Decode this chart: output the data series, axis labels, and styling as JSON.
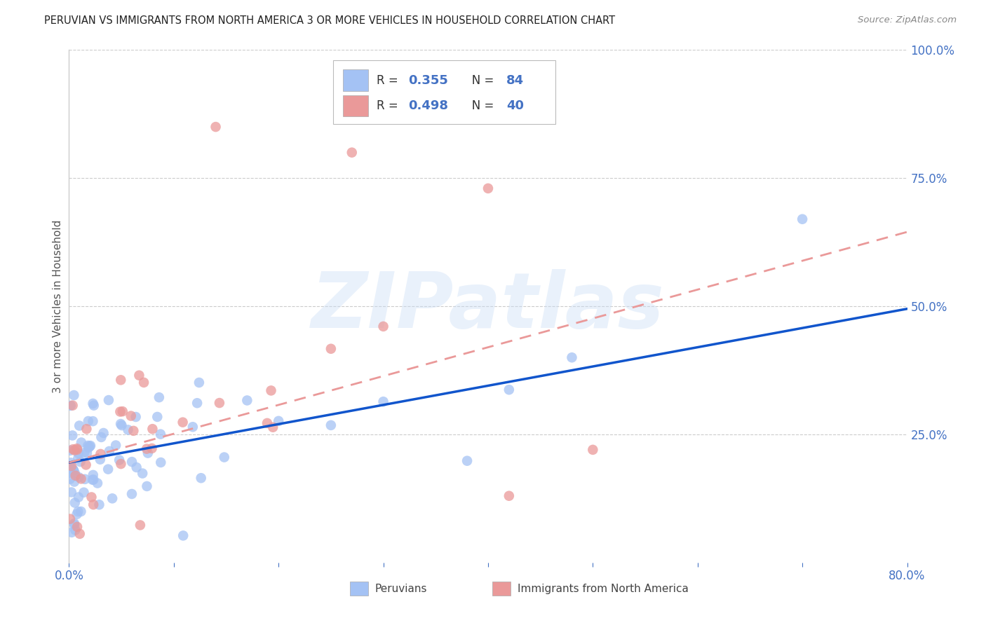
{
  "title": "PERUVIAN VS IMMIGRANTS FROM NORTH AMERICA 3 OR MORE VEHICLES IN HOUSEHOLD CORRELATION CHART",
  "source": "Source: ZipAtlas.com",
  "ylabel": "3 or more Vehicles in Household",
  "xlim": [
    0.0,
    0.8
  ],
  "ylim": [
    0.0,
    1.0
  ],
  "xtick_positions": [
    0.0,
    0.1,
    0.2,
    0.3,
    0.4,
    0.5,
    0.6,
    0.7,
    0.8
  ],
  "xticklabels": [
    "0.0%",
    "",
    "",
    "",
    "",
    "",
    "",
    "",
    "80.0%"
  ],
  "ytick_positions": [
    0.0,
    0.25,
    0.5,
    0.75,
    1.0
  ],
  "yticklabels_right": [
    "",
    "25.0%",
    "50.0%",
    "75.0%",
    "100.0%"
  ],
  "legend_labels": [
    "Peruvians",
    "Immigrants from North America"
  ],
  "series1_color": "#a4c2f4",
  "series2_color": "#ea9999",
  "series1_line_color": "#1155cc",
  "series2_line_color": "#cc4125",
  "series1_R": 0.355,
  "series1_N": 84,
  "series2_R": 0.498,
  "series2_N": 40,
  "watermark": "ZIPatlas",
  "background_color": "#ffffff",
  "grid_color": "#cccccc",
  "axis_label_color": "#4472c4",
  "title_color": "#222222",
  "legend_R_color": "#4472c4",
  "legend_N_color": "#4472c4",
  "series1_line_start_y": 0.195,
  "series1_line_end_y": 0.495,
  "series2_line_start_y": 0.195,
  "series2_line_end_y": 0.645
}
